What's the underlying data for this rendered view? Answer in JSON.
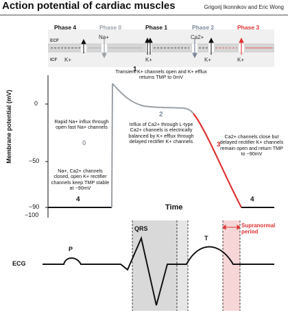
{
  "title": "Action potential of cardiac muscles",
  "authors": "Grigorij Ikonnikov and Eric Wong",
  "phases": [
    {
      "label": "Phase 4",
      "color": "#111111"
    },
    {
      "label": "Phase 0",
      "color": "#9aa0a6"
    },
    {
      "label": "Phase 1",
      "color": "#111111"
    },
    {
      "label": "Phase 2",
      "color": "#7a8899"
    },
    {
      "label": "Phase 3",
      "color": "#e03232"
    }
  ],
  "membrane": {
    "ecf_label": "ECF",
    "icf_label": "ICF",
    "ions": {
      "p0_na": "Na+",
      "p2_ca": "Ca2+",
      "p4_k": "K+",
      "p1_k": "K+",
      "p2_k": "K+",
      "p3_k": "K+"
    }
  },
  "annotations": {
    "phase1": "Transient K+ channels open and K+ efflux returns TMP to 0mV",
    "phase0": "Rapid Na+ influx through open fast Na+ channels",
    "phase2": "Influx of Ca2+ through L-type Ca2+ channels is electrically balanced by K+ efflux through delayed rectifier K+ channels",
    "phase3": "Ca2+ channels close but delayed rectifier K+ channels remain open and return TMP to −90mV",
    "phase4": "Na+, Ca2+ channels closed, open K+ rectifier channels keep TMP stable at −90mV"
  },
  "phase_numbers": {
    "p0": "0",
    "p1": "1",
    "p2": "2",
    "p3": "3",
    "p4_left": "4",
    "p4_right": "4"
  },
  "axes": {
    "y_label": "Membrane potential (mV)",
    "y_ticks": [
      "0",
      "−50",
      "−90",
      "−100"
    ],
    "x_label": "Time"
  },
  "ecg": {
    "label": "ECG",
    "p": "P",
    "qrs": "QRS",
    "t": "T",
    "supranormal": "Supranormal period"
  },
  "colors": {
    "phase3_red": "#e03232",
    "membrane_band": "#d6d6d6",
    "shade_gray": "#d9d9d9",
    "shade_pink": "#f6d6d6"
  }
}
